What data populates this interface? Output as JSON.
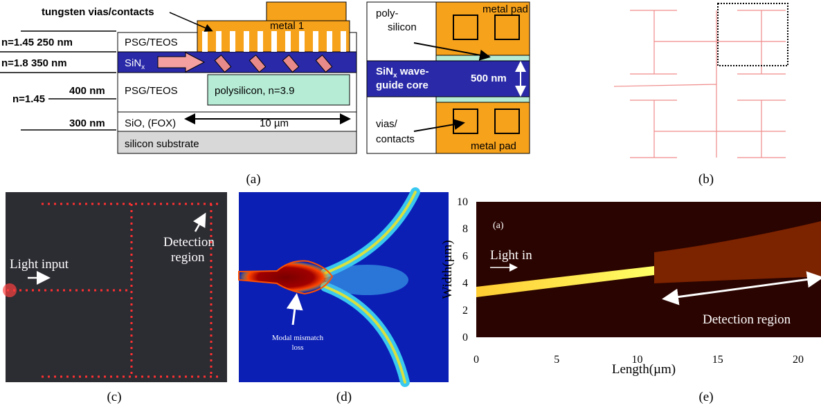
{
  "figure": {
    "panel_a": {
      "label": "(a)",
      "callout": "tungsten vias/contacts",
      "metal_1": "metal 1",
      "layer_labels": [
        "n=1.45 250 nm",
        "n=1.8  350 nm",
        "n=1.45",
        "400 nm",
        "300 nm"
      ],
      "psg_top": "PSG/TEOS",
      "sin": "SiN",
      "sin_sub": "x",
      "psg_bottom": "PSG/TEOS",
      "oxide": "SiO, (FOX)",
      "substrate": "silicon substrate",
      "polysilicon": "polysilicon, n=3.9",
      "length": "10 µm",
      "cross_section": {
        "polysilicon": [
          "poly-",
          "silicon"
        ],
        "metal_pad_top": "metal pad",
        "core": [
          "SiN",
          "x",
          " wave-",
          "guide core"
        ],
        "thickness": "500 nm",
        "vias": [
          "vias/",
          "contacts"
        ],
        "metal_pad_bottom": "metal pad"
      }
    },
    "panel_b": {
      "label": "(b)"
    },
    "panel_c": {
      "label": "(c)",
      "input": "Light input",
      "detection": [
        "Detection",
        "region"
      ]
    },
    "panel_d": {
      "label": "(d)",
      "loss": [
        "Modal mismatch",
        "loss"
      ]
    },
    "panel_e": {
      "label": "(e)",
      "inset_label": "(a)",
      "light": "Light in",
      "detection": "Detection region",
      "y_label": "Width(µm)",
      "x_label": "Length(µm)",
      "yticks": [
        0,
        2,
        4,
        6,
        8,
        10
      ],
      "xticks": [
        0,
        5,
        10,
        15,
        20
      ]
    }
  }
}
